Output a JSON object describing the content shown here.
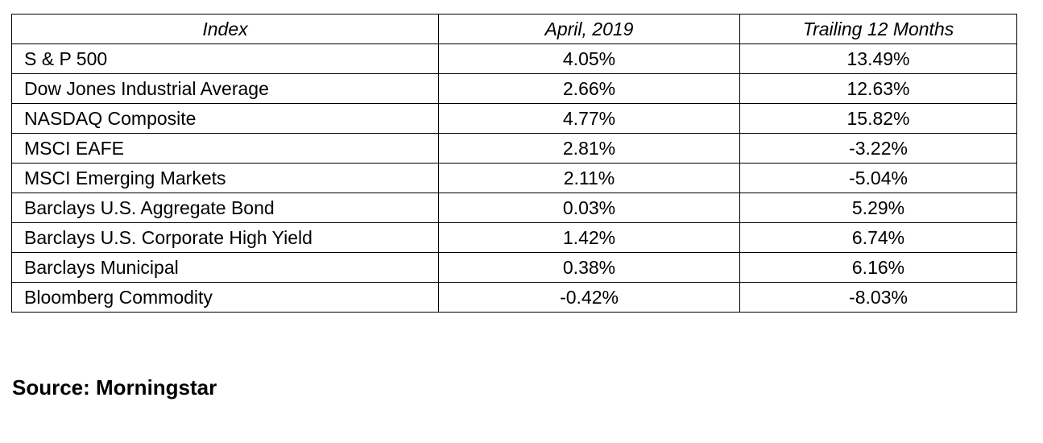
{
  "table": {
    "headers": [
      "Index",
      "April, 2019",
      "Trailing 12 Months"
    ],
    "rows": [
      {
        "index": "S & P 500",
        "month": "4.05%",
        "trailing": "13.49%"
      },
      {
        "index": "Dow Jones Industrial Average",
        "month": "2.66%",
        "trailing": "12.63%"
      },
      {
        "index": "NASDAQ Composite",
        "month": "4.77%",
        "trailing": "15.82%"
      },
      {
        "index": "MSCI EAFE",
        "month": "2.81%",
        "trailing": "-3.22%"
      },
      {
        "index": "MSCI Emerging Markets",
        "month": "2.11%",
        "trailing": "-5.04%"
      },
      {
        "index": "Barclays U.S. Aggregate Bond",
        "month": "0.03%",
        "trailing": "5.29%"
      },
      {
        "index": "Barclays U.S. Corporate High Yield",
        "month": "1.42%",
        "trailing": "6.74%"
      },
      {
        "index": "Barclays Municipal",
        "month": "0.38%",
        "trailing": "6.16%"
      },
      {
        "index": "Bloomberg Commodity",
        "month": "-0.42%",
        "trailing": "-8.03%"
      }
    ]
  },
  "source": "Source: Morningstar"
}
